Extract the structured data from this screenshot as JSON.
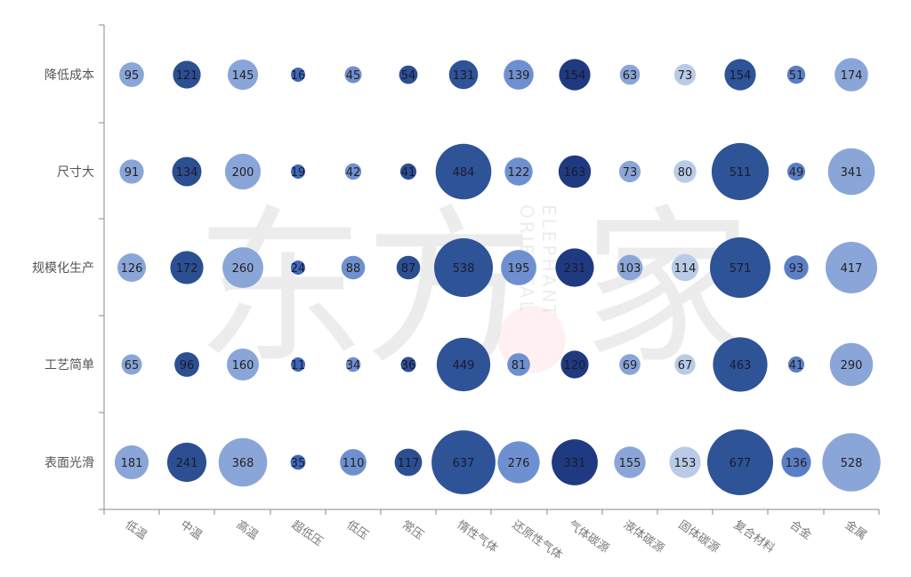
{
  "chart_data": {
    "type": "bubble-matrix",
    "title": "",
    "xlabel": "",
    "ylabel": "",
    "rows": [
      "降低成本",
      "尺寸大",
      "规模化生产",
      "工艺简单",
      "表面光滑"
    ],
    "columns": [
      "低温",
      "中温",
      "高温",
      "超低压",
      "低压",
      "常压",
      "惰性气体",
      "还原性气体",
      "气体碳源",
      "液体碳源",
      "固体碳源",
      "复合材料",
      "合金",
      "金属"
    ],
    "values": [
      [
        95,
        121,
        145,
        16,
        45,
        54,
        131,
        139,
        154,
        63,
        73,
        154,
        51,
        174
      ],
      [
        91,
        134,
        200,
        19,
        42,
        41,
        484,
        122,
        163,
        73,
        80,
        511,
        49,
        341
      ],
      [
        126,
        172,
        260,
        24,
        88,
        87,
        538,
        195,
        231,
        103,
        114,
        571,
        93,
        417
      ],
      [
        65,
        96,
        160,
        11,
        34,
        36,
        449,
        81,
        120,
        69,
        67,
        463,
        41,
        290
      ],
      [
        181,
        241,
        368,
        35,
        110,
        117,
        637,
        276,
        331,
        155,
        153,
        677,
        136,
        528
      ]
    ],
    "column_colors": [
      "#8aa6d8",
      "#2c4f92",
      "#8aa6d8",
      "#3f68b8",
      "#6f90d0",
      "#2c4f92",
      "#2e5397",
      "#6f90d0",
      "#1f3a80",
      "#8aa6d8",
      "#b9cbe6",
      "#2e5397",
      "#5a7fc6",
      "#8aa6d8"
    ],
    "grid": false,
    "legend": "none"
  },
  "watermark": {
    "brand_cn": "东方灵家",
    "brand_en": "ORIENTAL ELEPHANT"
  }
}
